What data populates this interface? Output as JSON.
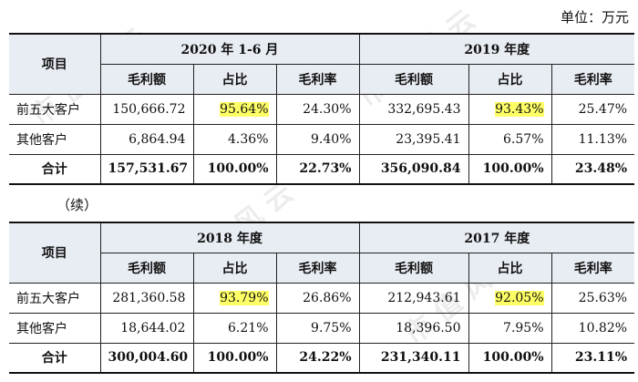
{
  "unit_label": "单位：万元",
  "continued_label": "（续）",
  "column_labels": {
    "item": "项目",
    "gross_profit": "毛利额",
    "share": "占比",
    "margin": "毛利率"
  },
  "tables": [
    {
      "periods": [
        "2020 年 1-6 月",
        "2019 年度"
      ],
      "rows": [
        {
          "label": "前五大客户",
          "cells": [
            "150,666.72",
            "95.64%",
            "24.30%",
            "332,695.43",
            "93.43%",
            "25.47%"
          ]
        },
        {
          "label": "其他客户",
          "cells": [
            "6,864.94",
            "4.36%",
            "9.40%",
            "23,395.41",
            "6.57%",
            "11.13%"
          ]
        },
        {
          "label": "合计",
          "cells": [
            "157,531.67",
            "100.00%",
            "22.73%",
            "356,090.84",
            "100.00%",
            "23.48%"
          ]
        }
      ]
    },
    {
      "periods": [
        "2018 年度",
        "2017 年度"
      ],
      "rows": [
        {
          "label": "前五大客户",
          "cells": [
            "281,360.58",
            "93.79%",
            "26.86%",
            "212,943.61",
            "92.05%",
            "25.63%"
          ]
        },
        {
          "label": "其他客户",
          "cells": [
            "18,644.02",
            "6.21%",
            "9.75%",
            "18,396.50",
            "7.95%",
            "10.82%"
          ]
        },
        {
          "label": "合计",
          "cells": [
            "300,004.60",
            "100.00%",
            "24.22%",
            "231,340.11",
            "100.00%",
            "23.11%"
          ]
        }
      ]
    }
  ],
  "highlight_color": "#ffff66",
  "header_bg_color": "#e8ecf3"
}
